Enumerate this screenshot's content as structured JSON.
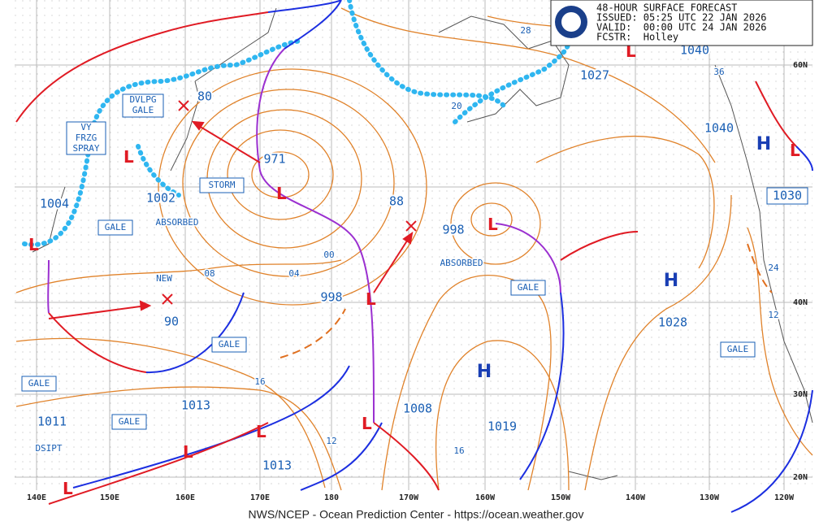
{
  "header": {
    "title": "48-HOUR SURFACE FORECAST",
    "issued": "ISSUED: 05:25 UTC 22 JAN 2026",
    "valid": "VALID:  00:00 UTC 24 JAN 2026",
    "forecaster": "FCSTR:  Holley"
  },
  "footer": "NWS/NCEP - Ocean Prediction Center - https://ocean.weather.gov",
  "longitudes": [
    "140E",
    "150E",
    "160E",
    "170E",
    "180",
    "170W",
    "160W",
    "150W",
    "140W",
    "130W",
    "120W"
  ],
  "latitudes": [
    "60N",
    "40N",
    "30N",
    "20N"
  ],
  "pressures": [
    "1040",
    "1027",
    "1040",
    "1030",
    "971",
    "1002",
    "1004",
    "998",
    "998",
    "1028",
    "1013",
    "1011",
    "1008",
    "1019",
    "1013",
    "80",
    "90",
    "88"
  ],
  "highs": [
    "H",
    "H",
    "H"
  ],
  "isobar_labels": [
    "28",
    "36",
    "20",
    "08",
    "04",
    "00",
    "16",
    "12",
    "16",
    "24",
    "12"
  ],
  "warnings": [
    [
      "DVLPG",
      "GALE"
    ],
    [
      "VY",
      "FRZG",
      "SPRAY"
    ],
    [
      "STORM"
    ],
    [
      "GALE"
    ],
    [
      "GALE"
    ],
    [
      "GALE"
    ],
    [
      "GALE"
    ],
    [
      "GALE"
    ],
    [
      "GALE"
    ]
  ],
  "notes": [
    "ABSORBED",
    "ABSORBED",
    "NEW",
    "DSIPT"
  ]
}
